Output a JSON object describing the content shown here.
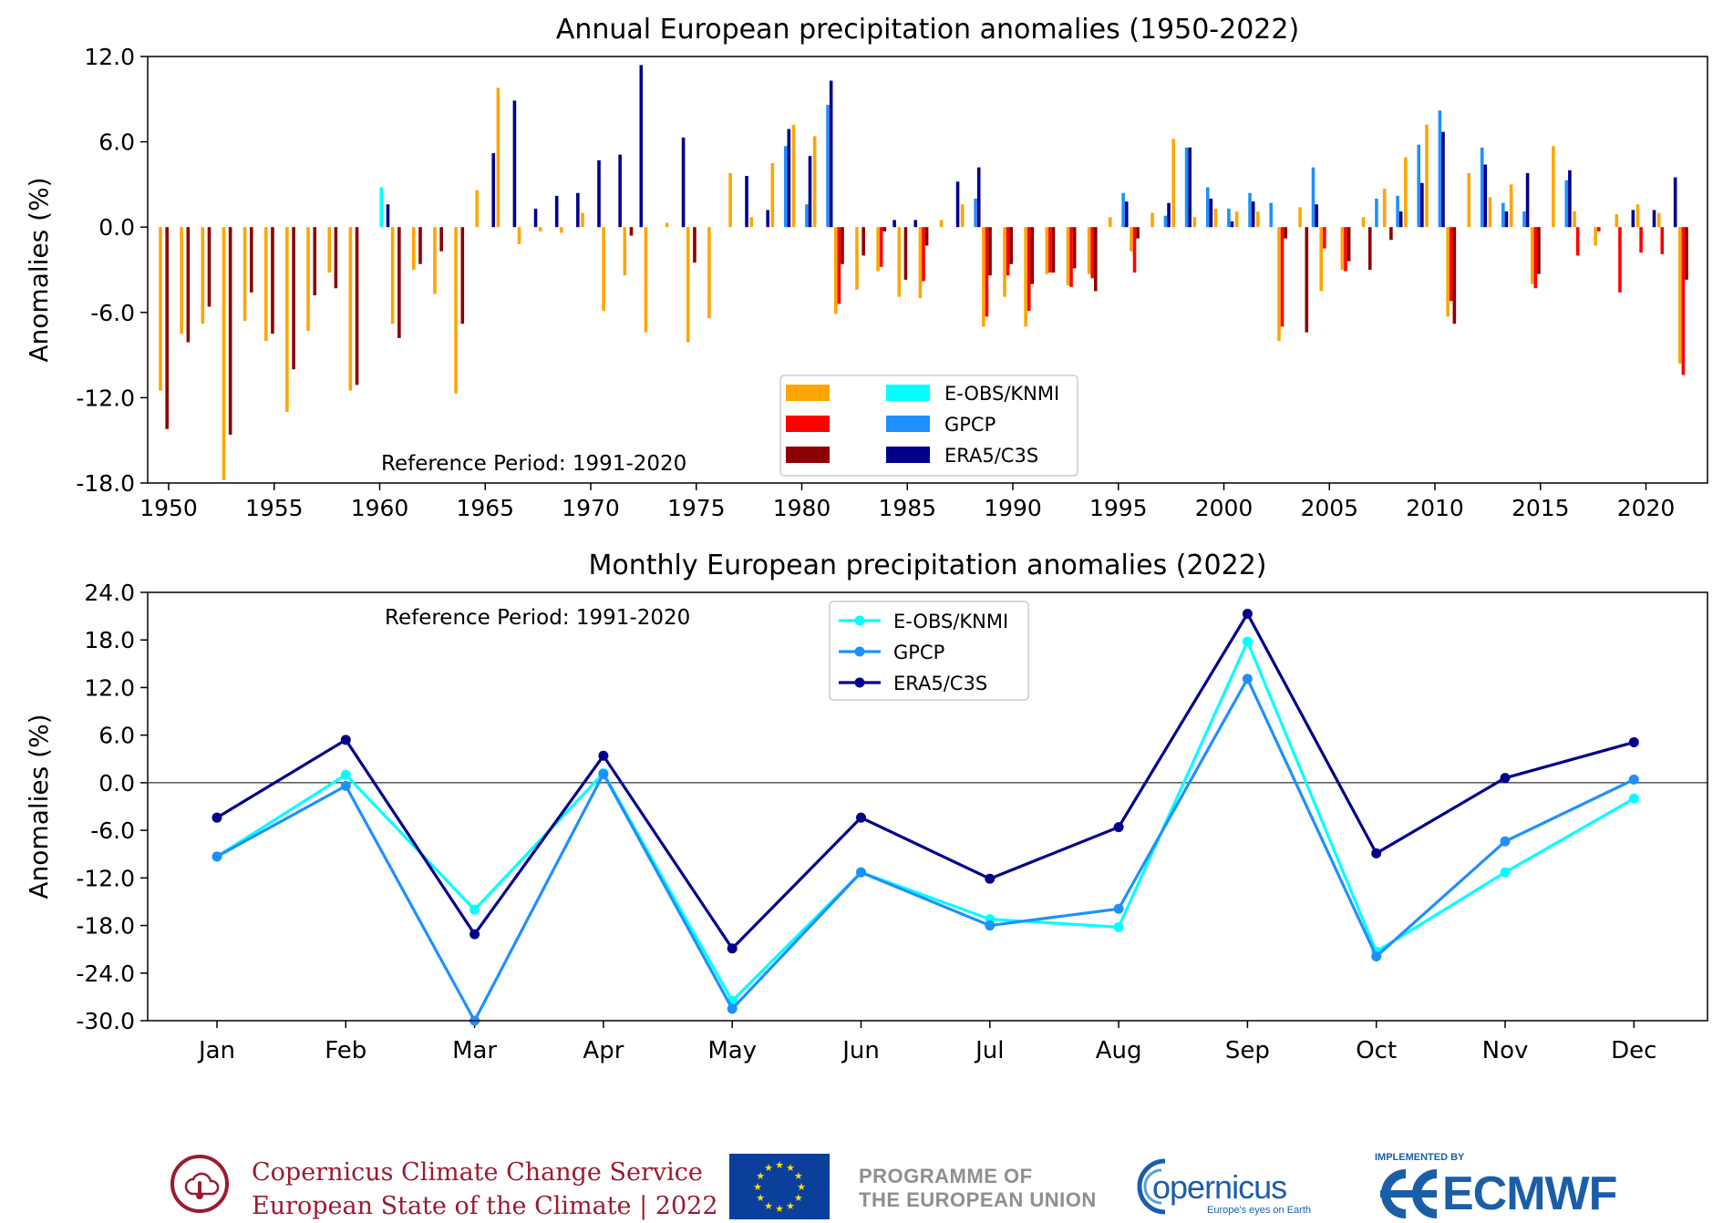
{
  "chart_data": [
    {
      "type": "bar",
      "title": "Annual European precipitation anomalies (1950-2022)",
      "xlabel": "",
      "ylabel": "Anomalies (%)",
      "ylim": [
        -18,
        12
      ],
      "yticks": [
        "12.0",
        "6.0",
        "0.0",
        "-6.0",
        "-12.0",
        "-18.0"
      ],
      "xticks": [
        "1950",
        "1955",
        "1960",
        "1965",
        "1970",
        "1975",
        "1980",
        "1985",
        "1990",
        "1995",
        "2000",
        "2005",
        "2010",
        "2015",
        "2020"
      ],
      "annotation": "Reference Period: 1991-2020",
      "legend_position": "lower-center",
      "groups": [
        {
          "name": "",
          "series": [
            {
              "name": "",
              "color": "#ffa500",
              "values": [
                -11.5,
                -7.5,
                -6.8,
                -17.8,
                -6.6,
                -8.0,
                -13.0,
                -7.3,
                -3.2,
                -11.5,
                null,
                -6.8,
                -3.0,
                -4.7,
                -11.7,
                2.6,
                9.8,
                -1.2,
                -0.3,
                -0.4,
                1.0,
                -5.9,
                -3.4,
                -7.4,
                0.3,
                -8.1,
                -6.4,
                3.8,
                0.7,
                4.5,
                7.2,
                6.4,
                -6.1,
                -4.4,
                -3.1,
                -4.9,
                -5.0,
                0.5,
                1.6,
                -7.0,
                -4.9,
                -7.0,
                -3.3,
                -4.1,
                -3.3,
                0.7,
                -1.7,
                1.0,
                6.2,
                0.7,
                1.3,
                1.1,
                1.1,
                -8.0,
                1.4,
                -4.5,
                -3.0,
                0.7,
                2.7,
                4.9,
                7.2,
                -6.3,
                3.8,
                2.1,
                3.0,
                -4.0,
                5.7,
                1.1,
                -1.3,
                0.9,
                1.6,
                1.0,
                -9.6
              ]
            },
            {
              "name": "",
              "color": "#ff0000",
              "values": [
                null,
                null,
                null,
                null,
                null,
                null,
                null,
                null,
                null,
                null,
                null,
                null,
                null,
                null,
                null,
                null,
                null,
                null,
                null,
                null,
                null,
                null,
                null,
                null,
                null,
                null,
                null,
                null,
                null,
                null,
                null,
                null,
                -5.4,
                null,
                -2.8,
                null,
                -3.8,
                null,
                null,
                -6.3,
                -3.4,
                -5.9,
                -3.2,
                -4.2,
                -3.6,
                null,
                -3.2,
                null,
                null,
                null,
                null,
                null,
                null,
                -7.0,
                null,
                -1.5,
                -3.1,
                null,
                null,
                null,
                null,
                -5.2,
                null,
                null,
                null,
                -4.3,
                null,
                -2.0,
                -0.3,
                -4.6,
                -1.8,
                -1.9,
                -10.4
              ]
            },
            {
              "name": "",
              "color": "#8b0000",
              "values": [
                -14.2,
                -8.1,
                -5.6,
                -14.6,
                -4.6,
                -7.5,
                -10.0,
                -4.8,
                -4.3,
                -11.1,
                null,
                -7.8,
                -2.6,
                -1.7,
                -6.8,
                null,
                null,
                null,
                null,
                null,
                null,
                null,
                -0.6,
                null,
                null,
                -2.5,
                null,
                null,
                null,
                null,
                null,
                null,
                -2.6,
                -2.0,
                -0.3,
                -3.7,
                -1.3,
                null,
                null,
                -3.4,
                -2.6,
                -4.0,
                -3.2,
                -2.9,
                -4.5,
                null,
                -0.8,
                null,
                null,
                null,
                null,
                null,
                null,
                -0.8,
                -7.4,
                null,
                -2.4,
                -3.0,
                -0.9,
                null,
                null,
                -6.8,
                null,
                null,
                null,
                -3.3,
                null,
                null,
                null,
                null,
                null,
                null,
                -3.7
              ]
            }
          ]
        },
        {
          "name": "",
          "series": [
            {
              "name": "E-OBS/KNMI",
              "color": "#00ffff",
              "values": [
                null,
                null,
                null,
                null,
                null,
                null,
                null,
                null,
                null,
                null,
                2.8,
                null,
                null,
                null,
                null,
                null,
                null,
                null,
                null,
                null,
                null,
                null,
                null,
                null,
                null,
                null,
                null,
                null,
                null,
                null,
                null,
                null,
                null,
                null,
                null,
                null,
                null,
                null,
                null,
                null,
                null,
                null,
                null,
                null,
                null,
                null,
                null,
                null,
                null,
                null,
                null,
                null,
                null,
                null,
                null,
                null,
                null,
                null,
                null,
                null,
                null,
                null,
                null,
                null,
                null,
                null,
                null,
                null,
                null,
                null,
                null,
                null,
                null
              ]
            },
            {
              "name": "GPCP",
              "color": "#1e90ff",
              "values": [
                null,
                null,
                null,
                null,
                null,
                null,
                null,
                null,
                null,
                null,
                null,
                null,
                null,
                null,
                null,
                null,
                null,
                null,
                null,
                null,
                null,
                null,
                null,
                null,
                null,
                null,
                null,
                null,
                null,
                5.7,
                1.6,
                8.6,
                null,
                null,
                null,
                null,
                null,
                null,
                2.0,
                null,
                null,
                null,
                null,
                null,
                null,
                2.4,
                null,
                0.8,
                5.6,
                2.8,
                1.3,
                2.4,
                1.7,
                null,
                4.2,
                null,
                null,
                2.0,
                2.2,
                5.8,
                8.2,
                null,
                5.6,
                1.7,
                1.1,
                null,
                3.3,
                null,
                null,
                null,
                null,
                null,
                null
              ]
            },
            {
              "name": "ERA5/C3S",
              "color": "#00008b",
              "values": [
                null,
                null,
                null,
                null,
                null,
                null,
                null,
                null,
                null,
                null,
                1.6,
                null,
                null,
                null,
                null,
                5.2,
                8.9,
                1.3,
                2.2,
                2.4,
                4.7,
                5.1,
                11.4,
                null,
                6.3,
                null,
                null,
                3.6,
                1.2,
                6.9,
                5.0,
                10.3,
                null,
                null,
                0.5,
                0.5,
                null,
                3.2,
                4.2,
                null,
                null,
                null,
                null,
                null,
                null,
                1.8,
                null,
                1.7,
                5.6,
                2.0,
                0.4,
                1.8,
                null,
                null,
                1.6,
                null,
                null,
                null,
                1.1,
                3.1,
                6.7,
                null,
                4.4,
                1.1,
                3.8,
                null,
                4.0,
                null,
                null,
                1.2,
                1.2,
                3.5,
                null
              ]
            }
          ]
        }
      ],
      "years_start": 1950,
      "years_end": 2022
    },
    {
      "type": "line",
      "title": "Monthly European precipitation anomalies (2022)",
      "xlabel": "",
      "ylabel": "Anomalies (%)",
      "ylim": [
        -30,
        24
      ],
      "yticks": [
        "24.0",
        "18.0",
        "12.0",
        "6.0",
        "0.0",
        "-6.0",
        "-12.0",
        "-18.0",
        "-24.0",
        "-30.0"
      ],
      "categories": [
        "Jan",
        "Feb",
        "Mar",
        "Apr",
        "May",
        "Jun",
        "Jul",
        "Aug",
        "Sep",
        "Oct",
        "Nov",
        "Dec"
      ],
      "annotation": "Reference Period: 1991-2020",
      "legend_position": "top-center",
      "series": [
        {
          "name": "E-OBS/KNMI",
          "color": "#00ffff",
          "values": [
            -9.3,
            1.0,
            -16.0,
            1.2,
            -27.5,
            -11.3,
            -17.2,
            -18.2,
            17.8,
            -21.3,
            -11.3,
            -2.0
          ]
        },
        {
          "name": "GPCP",
          "color": "#1e90ff",
          "values": [
            -9.3,
            -0.4,
            -30.0,
            1.1,
            -28.5,
            -11.3,
            -18.0,
            -15.9,
            13.1,
            -21.9,
            -7.4,
            0.4
          ]
        },
        {
          "name": "ERA5/C3S",
          "color": "#00008b",
          "values": [
            -4.4,
            5.4,
            -19.1,
            3.4,
            -20.9,
            -4.4,
            -12.1,
            -5.6,
            21.3,
            -8.9,
            0.6,
            5.1
          ]
        }
      ]
    }
  ],
  "footer": {
    "c3s_line1": "Copernicus Climate Change Service",
    "c3s_line2": "European State of the Climate | 2022",
    "eu_line1": "PROGRAMME OF",
    "eu_line2": "THE EUROPEAN UNION",
    "copernicus_name": "opernicus",
    "copernicus_tagline": "Europe's eyes on Earth",
    "ecmwf_implemented": "IMPLEMENTED BY",
    "ecmwf_name": "ECMWF",
    "c3s_color": "#9b1b30",
    "copernicus_color": "#1b5ea8"
  }
}
